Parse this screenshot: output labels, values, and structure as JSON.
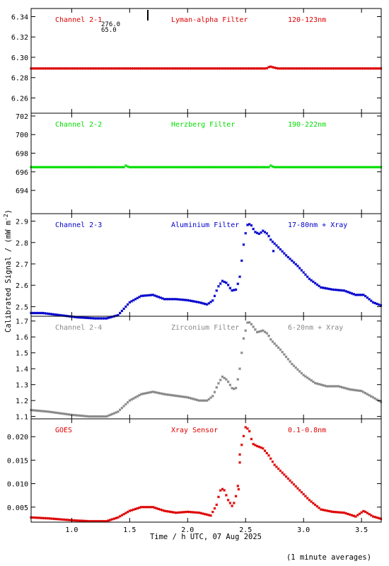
{
  "figure": {
    "xlabel": "Time / h UTC, 07 Aug 2025",
    "ylabel": "Calibrated Signal / (mW m",
    "ylabel_sup": "-2",
    "ylabel_close": ")",
    "footnote": "(1 minute averages)"
  },
  "chart_data": [
    {
      "type": "scatter",
      "panel": "Channel 2-1",
      "title_left": "Channel 2-1",
      "title_mid": "Lyman-alpha Filter",
      "title_right": "120-123nm",
      "color": "#dd0000",
      "marker_annotations": [
        "276.0",
        "65.0"
      ],
      "xlim": [
        0.65,
        3.67
      ],
      "ylim": [
        6.245,
        6.348
      ],
      "yticks": [
        6.26,
        6.28,
        6.3,
        6.32,
        6.34
      ],
      "ytick_labels": [
        "6.26",
        "6.28",
        "6.30",
        "6.32",
        "6.34"
      ],
      "profile": [
        [
          0.65,
          6.289
        ],
        [
          2.68,
          6.289
        ],
        [
          2.71,
          6.291
        ],
        [
          2.74,
          6.29
        ],
        [
          2.78,
          6.289
        ],
        [
          3.67,
          6.289
        ]
      ]
    },
    {
      "type": "scatter",
      "panel": "Channel 2-2",
      "title_left": "Channel 2-2",
      "title_mid": "Herzberg Filter",
      "title_right": "190-222nm",
      "color": "#00dd00",
      "xlim": [
        0.65,
        3.67
      ],
      "ylim": [
        691.5,
        702.3
      ],
      "yticks": [
        694,
        696,
        698,
        700,
        702
      ],
      "ytick_labels": [
        "694",
        "696",
        "698",
        "700",
        "702"
      ],
      "profile": [
        [
          0.65,
          696.5
        ],
        [
          1.45,
          696.5
        ],
        [
          1.47,
          696.7
        ],
        [
          1.49,
          696.5
        ],
        [
          2.7,
          696.5
        ],
        [
          2.72,
          696.7
        ],
        [
          2.74,
          696.5
        ],
        [
          3.67,
          696.5
        ]
      ]
    },
    {
      "type": "scatter",
      "panel": "Channel 2-3",
      "title_left": "Channel 2-3",
      "title_mid": "Aluminium Filter",
      "title_right": "17-80nm + Xray",
      "color": "#0000cc",
      "xlim": [
        0.65,
        3.67
      ],
      "ylim": [
        2.455,
        2.935
      ],
      "yticks": [
        2.5,
        2.6,
        2.7,
        2.8,
        2.9
      ],
      "ytick_labels": [
        "2.5",
        "2.6",
        "2.7",
        "2.8",
        "2.9"
      ],
      "profile": [
        [
          0.65,
          2.47
        ],
        [
          0.75,
          2.47
        ],
        [
          0.9,
          2.46
        ],
        [
          1.05,
          2.45
        ],
        [
          1.2,
          2.445
        ],
        [
          1.3,
          2.445
        ],
        [
          1.4,
          2.46
        ],
        [
          1.5,
          2.52
        ],
        [
          1.6,
          2.55
        ],
        [
          1.7,
          2.555
        ],
        [
          1.8,
          2.535
        ],
        [
          1.9,
          2.535
        ],
        [
          2.0,
          2.53
        ],
        [
          2.1,
          2.52
        ],
        [
          2.17,
          2.51
        ],
        [
          2.22,
          2.53
        ],
        [
          2.26,
          2.59
        ],
        [
          2.3,
          2.62
        ],
        [
          2.34,
          2.61
        ],
        [
          2.38,
          2.575
        ],
        [
          2.42,
          2.58
        ],
        [
          2.45,
          2.64
        ],
        [
          2.49,
          2.82
        ],
        [
          2.52,
          2.89
        ],
        [
          2.55,
          2.88
        ],
        [
          2.58,
          2.85
        ],
        [
          2.62,
          2.84
        ],
        [
          2.65,
          2.855
        ],
        [
          2.69,
          2.84
        ],
        [
          2.72,
          2.81
        ],
        [
          2.76,
          2.79
        ],
        [
          2.85,
          2.74
        ],
        [
          2.95,
          2.69
        ],
        [
          3.05,
          2.63
        ],
        [
          3.15,
          2.59
        ],
        [
          3.25,
          2.58
        ],
        [
          3.35,
          2.575
        ],
        [
          3.45,
          2.555
        ],
        [
          3.52,
          2.555
        ],
        [
          3.6,
          2.52
        ],
        [
          3.67,
          2.505
        ]
      ],
      "outliers": [
        [
          2.74,
          2.76
        ]
      ]
    },
    {
      "type": "scatter",
      "panel": "Channel 2-4",
      "title_left": "Channel 2-4",
      "title_mid": "Zirconium Filter",
      "title_right": "6-20nm + Xray",
      "color": "#888888",
      "xlim": [
        0.65,
        3.67
      ],
      "ylim": [
        1.085,
        1.73
      ],
      "yticks": [
        1.1,
        1.2,
        1.3,
        1.4,
        1.5,
        1.6,
        1.7
      ],
      "ytick_labels": [
        "1.1",
        "1.2",
        "1.3",
        "1.4",
        "1.5",
        "1.6",
        "1.7"
      ],
      "profile": [
        [
          0.65,
          1.14
        ],
        [
          0.8,
          1.13
        ],
        [
          1.0,
          1.11
        ],
        [
          1.15,
          1.1
        ],
        [
          1.3,
          1.1
        ],
        [
          1.4,
          1.13
        ],
        [
          1.5,
          1.2
        ],
        [
          1.6,
          1.24
        ],
        [
          1.7,
          1.255
        ],
        [
          1.8,
          1.24
        ],
        [
          1.9,
          1.23
        ],
        [
          2.0,
          1.22
        ],
        [
          2.1,
          1.2
        ],
        [
          2.17,
          1.2
        ],
        [
          2.22,
          1.23
        ],
        [
          2.26,
          1.3
        ],
        [
          2.3,
          1.35
        ],
        [
          2.34,
          1.33
        ],
        [
          2.39,
          1.27
        ],
        [
          2.42,
          1.28
        ],
        [
          2.45,
          1.4
        ],
        [
          2.48,
          1.58
        ],
        [
          2.52,
          1.7
        ],
        [
          2.55,
          1.68
        ],
        [
          2.6,
          1.63
        ],
        [
          2.65,
          1.64
        ],
        [
          2.69,
          1.62
        ],
        [
          2.72,
          1.58
        ],
        [
          2.8,
          1.52
        ],
        [
          2.9,
          1.43
        ],
        [
          3.0,
          1.36
        ],
        [
          3.1,
          1.31
        ],
        [
          3.2,
          1.29
        ],
        [
          3.3,
          1.29
        ],
        [
          3.4,
          1.27
        ],
        [
          3.5,
          1.26
        ],
        [
          3.6,
          1.22
        ],
        [
          3.67,
          1.19
        ]
      ]
    },
    {
      "type": "scatter",
      "panel": "GOES",
      "title_left": "GOES",
      "title_mid": "Xray Sensor",
      "title_right": "0.1-0.8nm",
      "color": "#dd0000",
      "xlim": [
        0.65,
        3.67
      ],
      "ylim": [
        0.0018,
        0.0238
      ],
      "yticks": [
        0.005,
        0.01,
        0.015,
        0.02
      ],
      "ytick_labels": [
        "0.005",
        "0.010",
        "0.015",
        "0.020"
      ],
      "xticks": [
        1.0,
        1.5,
        2.0,
        2.5,
        3.0,
        3.5
      ],
      "xtick_labels": [
        "1.0",
        "1.5",
        "2.0",
        "2.5",
        "3.0",
        "3.5"
      ],
      "profile": [
        [
          0.65,
          0.0028
        ],
        [
          0.8,
          0.0026
        ],
        [
          1.0,
          0.0022
        ],
        [
          1.15,
          0.002
        ],
        [
          1.3,
          0.002
        ],
        [
          1.4,
          0.0028
        ],
        [
          1.5,
          0.0042
        ],
        [
          1.6,
          0.005
        ],
        [
          1.7,
          0.005
        ],
        [
          1.8,
          0.0042
        ],
        [
          1.9,
          0.0038
        ],
        [
          2.0,
          0.004
        ],
        [
          2.1,
          0.0038
        ],
        [
          2.2,
          0.0032
        ],
        [
          2.25,
          0.0055
        ],
        [
          2.28,
          0.0085
        ],
        [
          2.31,
          0.009
        ],
        [
          2.35,
          0.0065
        ],
        [
          2.39,
          0.005
        ],
        [
          2.43,
          0.0085
        ],
        [
          2.46,
          0.0175
        ],
        [
          2.5,
          0.022
        ],
        [
          2.53,
          0.0215
        ],
        [
          2.56,
          0.0185
        ],
        [
          2.6,
          0.018
        ],
        [
          2.65,
          0.0175
        ],
        [
          2.7,
          0.016
        ],
        [
          2.75,
          0.014
        ],
        [
          2.85,
          0.0115
        ],
        [
          2.95,
          0.009
        ],
        [
          3.05,
          0.0065
        ],
        [
          3.15,
          0.0045
        ],
        [
          3.25,
          0.004
        ],
        [
          3.35,
          0.0038
        ],
        [
          3.45,
          0.003
        ],
        [
          3.52,
          0.0042
        ],
        [
          3.6,
          0.003
        ],
        [
          3.67,
          0.0025
        ]
      ],
      "outliers": [
        [
          2.44,
          0.0088
        ],
        [
          2.45,
          0.0162
        ]
      ]
    }
  ]
}
